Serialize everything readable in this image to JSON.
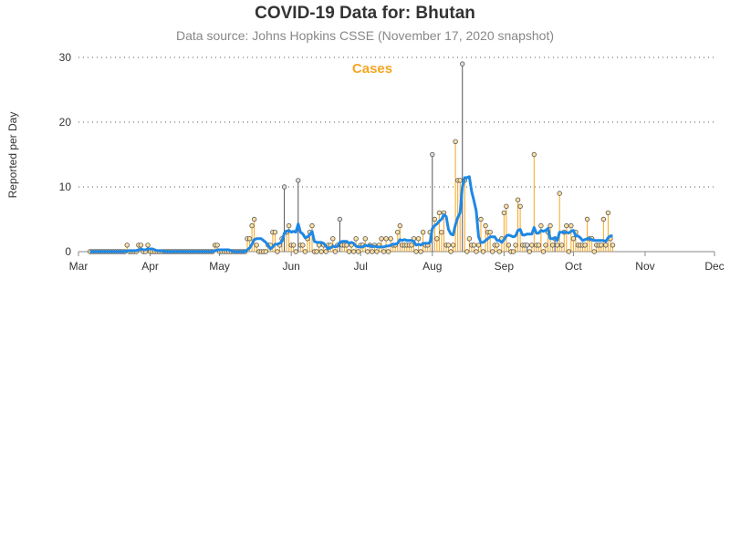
{
  "chart_data": {
    "type": "line",
    "title": "COVID-19 Data for: Bhutan",
    "subtitle": "Data source: Johns Hopkins CSSE (November 17, 2020 snapshot)",
    "ylabel": "Reported per Day",
    "xlabel": "",
    "series_label": "Cases",
    "ylim": [
      0,
      30
    ],
    "yticks": [
      0,
      10,
      20,
      30
    ],
    "grid": "horizontal dotted",
    "x_ticks": [
      "Mar",
      "Apr",
      "May",
      "Jun",
      "Jul",
      "Aug",
      "Sep",
      "Oct",
      "Nov",
      "Dec"
    ],
    "x_start": "2020-03-06",
    "colors": {
      "spike": "#f5a623",
      "highlight_spike": "#555555",
      "average": "#1e88e5",
      "marker_fill": "#ffe0a0"
    },
    "daily_cases": [
      0,
      0,
      0,
      0,
      0,
      0,
      0,
      0,
      0,
      0,
      0,
      0,
      0,
      0,
      0,
      0,
      1,
      0,
      0,
      0,
      0,
      1,
      1,
      0,
      0,
      1,
      0,
      0,
      0,
      0,
      0,
      0,
      0,
      0,
      0,
      0,
      0,
      0,
      0,
      0,
      0,
      0,
      0,
      0,
      0,
      0,
      0,
      0,
      0,
      0,
      0,
      0,
      0,
      0,
      1,
      1,
      0,
      0,
      0,
      0,
      0,
      0,
      0,
      0,
      0,
      0,
      0,
      0,
      2,
      2,
      4,
      5,
      1,
      0,
      0,
      0,
      0,
      1,
      1,
      3,
      3,
      0,
      1,
      2,
      10,
      3,
      4,
      1,
      1,
      0,
      11,
      1,
      1,
      0,
      2,
      3,
      4,
      0,
      0,
      1,
      0,
      1,
      0,
      1,
      1,
      2,
      0,
      1,
      5,
      1,
      1,
      1,
      0,
      1,
      0,
      2,
      0,
      1,
      1,
      2,
      0,
      1,
      0,
      1,
      0,
      1,
      2,
      0,
      2,
      0,
      2,
      1,
      1,
      3,
      4,
      1,
      1,
      1,
      1,
      1,
      2,
      0,
      2,
      0,
      3,
      1,
      1,
      3,
      15,
      5,
      2,
      6,
      3,
      6,
      1,
      1,
      0,
      1,
      17,
      11,
      11,
      29,
      11,
      0,
      2,
      1,
      1,
      0,
      1,
      5,
      0,
      4,
      3,
      3,
      0,
      1,
      1,
      0,
      2,
      6,
      7,
      1,
      0,
      0,
      1,
      8,
      7,
      1,
      1,
      1,
      0,
      1,
      15,
      1,
      1,
      4,
      0,
      1,
      3,
      4,
      1,
      2,
      1,
      9,
      1,
      3,
      4,
      0,
      4,
      2,
      3,
      1,
      1,
      1,
      1,
      5,
      2,
      2,
      0,
      1,
      1,
      1,
      5,
      1,
      6,
      2,
      1
    ],
    "highlight_days": [
      84,
      90,
      108,
      148,
      161,
      189,
      201
    ]
  }
}
